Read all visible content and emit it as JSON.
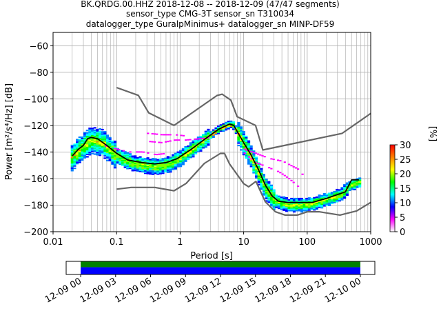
{
  "chart_data": {
    "type": "heatmap",
    "title_lines": [
      "BK.QRDG.00.HHZ   2018-12-08 -- 2018-12-09  (47/47 segments)",
      "sensor_type CMG-3T sensor_sn T310034",
      "datalogger_type GuralpMinimus+ datalogger_sn MINP-DF59"
    ],
    "xlabel": "Period [s]",
    "ylabel": "Power [m²/s⁴/Hz] [dB]",
    "x_scale": "log",
    "xlim": [
      0.01,
      1000
    ],
    "ylim": [
      -200,
      -50
    ],
    "x_ticks": [
      {
        "value": 0.01,
        "label": "0.01"
      },
      {
        "value": 0.1,
        "label": "0.1"
      },
      {
        "value": 1,
        "label": "1"
      },
      {
        "value": 10,
        "label": "10"
      },
      {
        "value": 100,
        "label": "100"
      },
      {
        "value": 1000,
        "label": "1000"
      }
    ],
    "y_ticks": [
      {
        "value": -60,
        "label": "−60"
      },
      {
        "value": -80,
        "label": "−80"
      },
      {
        "value": -100,
        "label": "−100"
      },
      {
        "value": -120,
        "label": "−120"
      },
      {
        "value": -140,
        "label": "−140"
      },
      {
        "value": -160,
        "label": "−160"
      },
      {
        "value": -180,
        "label": "−180"
      },
      {
        "value": -200,
        "label": "−200"
      }
    ],
    "grid": true,
    "colorbar": {
      "label": "[%]",
      "range": [
        0,
        30
      ],
      "ticks": [
        {
          "value": 0,
          "label": "0"
        },
        {
          "value": 5,
          "label": "5"
        },
        {
          "value": 10,
          "label": "10"
        },
        {
          "value": 15,
          "label": "15"
        },
        {
          "value": 20,
          "label": "20"
        },
        {
          "value": 25,
          "label": "25"
        },
        {
          "value": 30,
          "label": "30"
        }
      ],
      "colors": [
        "#ffffff",
        "#ff00ff",
        "#0000ff",
        "#00ffff",
        "#00ff00",
        "#ffff00",
        "#ff8000",
        "#ff0000"
      ]
    },
    "noise_model_high": [
      [
        0.1,
        -91.5
      ],
      [
        0.22,
        -97.4
      ],
      [
        0.32,
        -110.5
      ],
      [
        0.8,
        -120
      ],
      [
        3.8,
        -97.5
      ],
      [
        4.6,
        -96.5
      ],
      [
        6.3,
        -101
      ],
      [
        7.9,
        -113.5
      ],
      [
        15.4,
        -120
      ],
      [
        20,
        -138.5
      ],
      [
        354.8,
        -126
      ],
      [
        1000,
        -111
      ]
    ],
    "noise_model_low": [
      [
        0.1,
        -168
      ],
      [
        0.17,
        -166.7
      ],
      [
        0.4,
        -166.7
      ],
      [
        0.8,
        -169.2
      ],
      [
        1.24,
        -163.7
      ],
      [
        2.4,
        -148.6
      ],
      [
        4.3,
        -141.1
      ],
      [
        5,
        -141.1
      ],
      [
        6,
        -149
      ],
      [
        10,
        -163.8
      ],
      [
        12,
        -166.2
      ],
      [
        15.6,
        -162.1
      ],
      [
        21.9,
        -177.5
      ],
      [
        31.6,
        -185
      ],
      [
        45,
        -187.5
      ],
      [
        70,
        -187.5
      ],
      [
        101,
        -185
      ],
      [
        154,
        -185
      ],
      [
        328,
        -187.5
      ],
      [
        600,
        -184.4
      ],
      [
        1000,
        -178
      ]
    ],
    "mean_psd": [
      [
        0.02,
        -143
      ],
      [
        0.025,
        -138
      ],
      [
        0.03,
        -135
      ],
      [
        0.035,
        -130
      ],
      [
        0.04,
        -129
      ],
      [
        0.05,
        -130
      ],
      [
        0.07,
        -135
      ],
      [
        0.1,
        -141
      ],
      [
        0.15,
        -146
      ],
      [
        0.25,
        -148
      ],
      [
        0.4,
        -149
      ],
      [
        0.6,
        -148
      ],
      [
        0.9,
        -145
      ],
      [
        1.5,
        -138
      ],
      [
        2.5,
        -130
      ],
      [
        4,
        -123
      ],
      [
        6,
        -119
      ],
      [
        7,
        -120
      ],
      [
        8,
        -125
      ],
      [
        10,
        -133
      ],
      [
        13,
        -142
      ],
      [
        17,
        -153
      ],
      [
        22,
        -165
      ],
      [
        28,
        -173
      ],
      [
        35,
        -177
      ],
      [
        50,
        -178
      ],
      [
        80,
        -178
      ],
      [
        120,
        -178
      ],
      [
        200,
        -175
      ],
      [
        300,
        -172
      ],
      [
        400,
        -170
      ],
      [
        500,
        -161
      ],
      [
        650,
        -161
      ]
    ],
    "mode_psd": [
      [
        0.02,
        -144
      ],
      [
        0.03,
        -136
      ],
      [
        0.04,
        -131
      ],
      [
        0.06,
        -133
      ],
      [
        0.1,
        -143
      ],
      [
        0.2,
        -149
      ],
      [
        0.4,
        -151
      ],
      [
        0.7,
        -149
      ],
      [
        1,
        -145
      ],
      [
        2,
        -134
      ],
      [
        4,
        -123
      ],
      [
        6,
        -119
      ],
      [
        7,
        -120
      ],
      [
        9,
        -129
      ],
      [
        12,
        -140
      ],
      [
        16,
        -152
      ],
      [
        22,
        -167
      ],
      [
        30,
        -176
      ],
      [
        50,
        -180
      ],
      [
        100,
        -180
      ],
      [
        200,
        -176
      ],
      [
        350,
        -172
      ],
      [
        450,
        -166
      ],
      [
        650,
        -163
      ]
    ],
    "outlier_bands": [
      {
        "x": [
          0.06,
          0.1,
          0.15,
          0.25,
          0.4,
          0.6
        ],
        "y": [
          -135,
          -138,
          -140,
          -140,
          -142,
          -141
        ]
      },
      {
        "x": [
          0.3,
          0.5,
          0.8,
          1.2
        ],
        "y": [
          -126,
          -127,
          -127,
          -128
        ]
      },
      {
        "x": [
          0.3,
          0.5,
          0.8,
          1.2,
          2,
          3
        ],
        "y": [
          -132,
          -133,
          -131,
          -131,
          -130,
          -129
        ]
      },
      {
        "x": [
          10,
          15,
          25,
          40,
          70,
          100
        ],
        "y": [
          -138,
          -141,
          -145,
          -147,
          -153,
          -162
        ]
      },
      {
        "x": [
          10,
          15,
          22,
          35,
          50,
          70
        ],
        "y": [
          -141,
          -148,
          -151,
          -155,
          -160,
          -166
        ]
      }
    ],
    "time_axis": {
      "coverage": [
        0.047,
        0.953
      ],
      "tick_labels": [
        "12-09 00",
        "12-09 03",
        "12-09 06",
        "12-09 09",
        "12-09 12",
        "12-09 15",
        "12-09 18",
        "12-09 21",
        "12-10 00"
      ]
    }
  },
  "colors": {
    "noise_model": "#666666",
    "mean": "#000000",
    "coverage_top": "#008000",
    "coverage_bottom": "#0000ff",
    "grid": "#b0b0b0"
  }
}
